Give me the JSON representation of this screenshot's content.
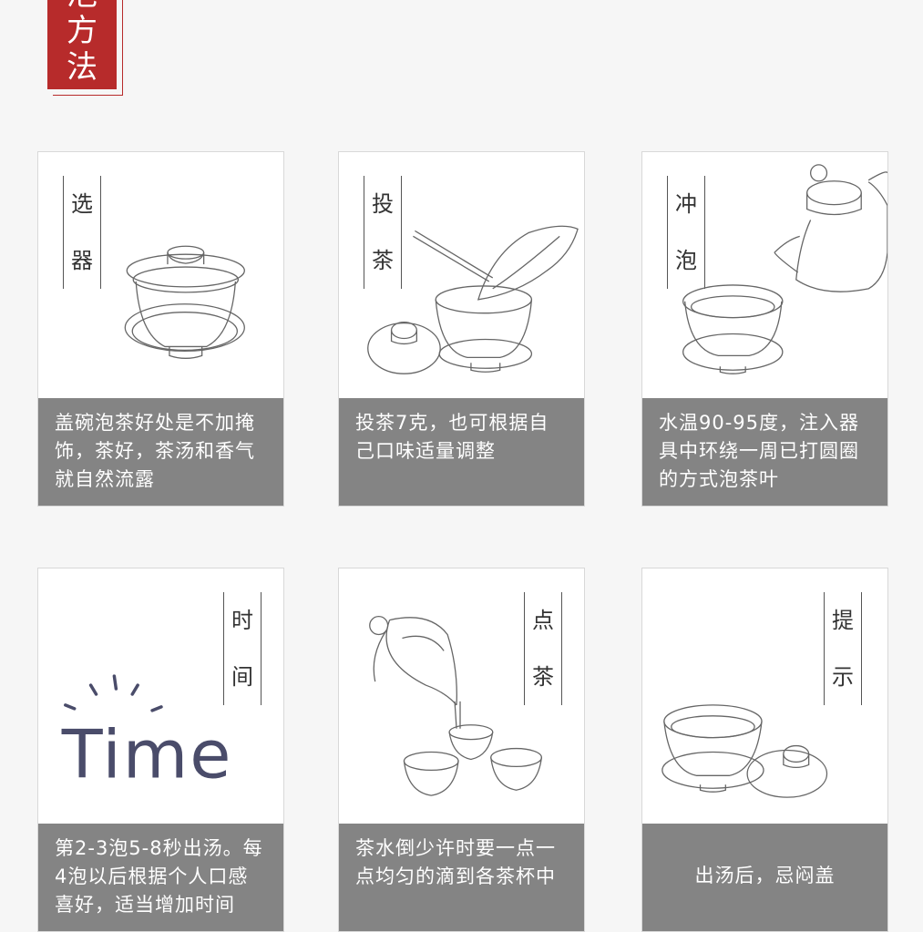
{
  "header": {
    "chars": [
      "泡",
      "方",
      "法"
    ]
  },
  "cards": [
    {
      "label": [
        "选",
        "器"
      ],
      "text": "盖碗泡茶好处是不加掩饰，茶好，茶汤和香气就自然流露"
    },
    {
      "label": [
        "投",
        "茶"
      ],
      "text": "投茶7克，也可根据自己口味适量调整"
    },
    {
      "label": [
        "冲",
        "泡"
      ],
      "text": "水温90-95度，注入器具中环绕一周已打圆圈的方式泡茶叶"
    },
    {
      "label": [
        "时",
        "间"
      ],
      "text": "第2-3泡5-8秒出汤。每4泡以后根据个人口感喜好，适当增加时间",
      "art_word": "Time"
    },
    {
      "label": [
        "点",
        "茶"
      ],
      "text": "茶水倒少许时要一点一点均匀的滴到各茶杯中"
    },
    {
      "label": [
        "提",
        "示"
      ],
      "text": "出汤后，忌闷盖"
    }
  ],
  "colors": {
    "accent_red": "#b72b2b",
    "caption_gray": "#848484",
    "time_blue": "#4a4c6a"
  }
}
